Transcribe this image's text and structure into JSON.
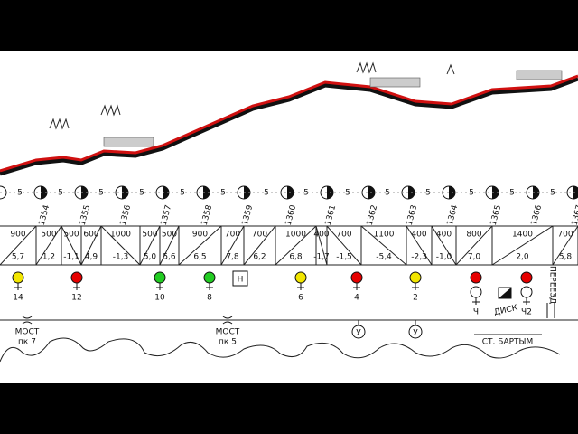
{
  "km_posts": [
    "1354",
    "1355",
    "1356",
    "1357",
    "1358",
    "1359",
    "1360",
    "1361",
    "1362",
    "1363",
    "1364",
    "1365",
    "1366",
    "1367"
  ],
  "pickets": [
    "5",
    "5",
    "5",
    "5",
    "5",
    "5",
    "5",
    "5",
    "5",
    "5",
    "5",
    "5",
    "5",
    "5"
  ],
  "grade_sections": [
    {
      "length": "900",
      "grade": "5,7"
    },
    {
      "length": "500",
      "grade": "1,2"
    },
    {
      "length": "500",
      "grade": "-1,1"
    },
    {
      "length": "600",
      "grade": "4,9"
    },
    {
      "length": "1000",
      "grade": "-1,3"
    },
    {
      "length": "500",
      "grade": "5,0"
    },
    {
      "length": "500",
      "grade": "5,6"
    },
    {
      "length": "900",
      "grade": "6,5"
    },
    {
      "length": "700",
      "grade": "7,8"
    },
    {
      "length": "700",
      "grade": "6,2"
    },
    {
      "length": "1000",
      "grade": "6,8"
    },
    {
      "length": "400",
      "grade": "-1,7"
    },
    {
      "length": "700",
      "grade": "-1,5"
    },
    {
      "length": "1100",
      "grade": "-5,4"
    },
    {
      "length": "400",
      "grade": "-2,3"
    },
    {
      "length": "400",
      "grade": "-1,0"
    },
    {
      "length": "800",
      "grade": "7,0"
    },
    {
      "length": "1400",
      "grade": "2,0"
    },
    {
      "length": "700",
      "grade": "5,8"
    }
  ],
  "signals": [
    {
      "label": "14",
      "color": "#f2e600"
    },
    {
      "label": "12",
      "color": "#e60000"
    },
    {
      "label": "10",
      "color": "#22cc22"
    },
    {
      "label": "8",
      "color": "#22cc22"
    },
    {
      "label": "6",
      "color": "#f2e600"
    },
    {
      "label": "4",
      "color": "#e60000"
    },
    {
      "label": "2",
      "color": "#f2e600"
    },
    {
      "label": "Ч",
      "color": "#e60000",
      "second_color": "#ffffff"
    },
    {
      "label": "Ч2",
      "color": "#e60000",
      "second_color": "#ffffff"
    }
  ],
  "sign_h": "Н",
  "disk": "ДИСК",
  "crossing": "ПЕРЕЕЗД",
  "bridges": [
    {
      "label": "МОСТ",
      "km": "пк 7"
    },
    {
      "label": "МОСТ",
      "km": "пк 5"
    }
  ],
  "stops": [
    "У",
    "У"
  ],
  "station": "СТ. БАРТЫМ"
}
